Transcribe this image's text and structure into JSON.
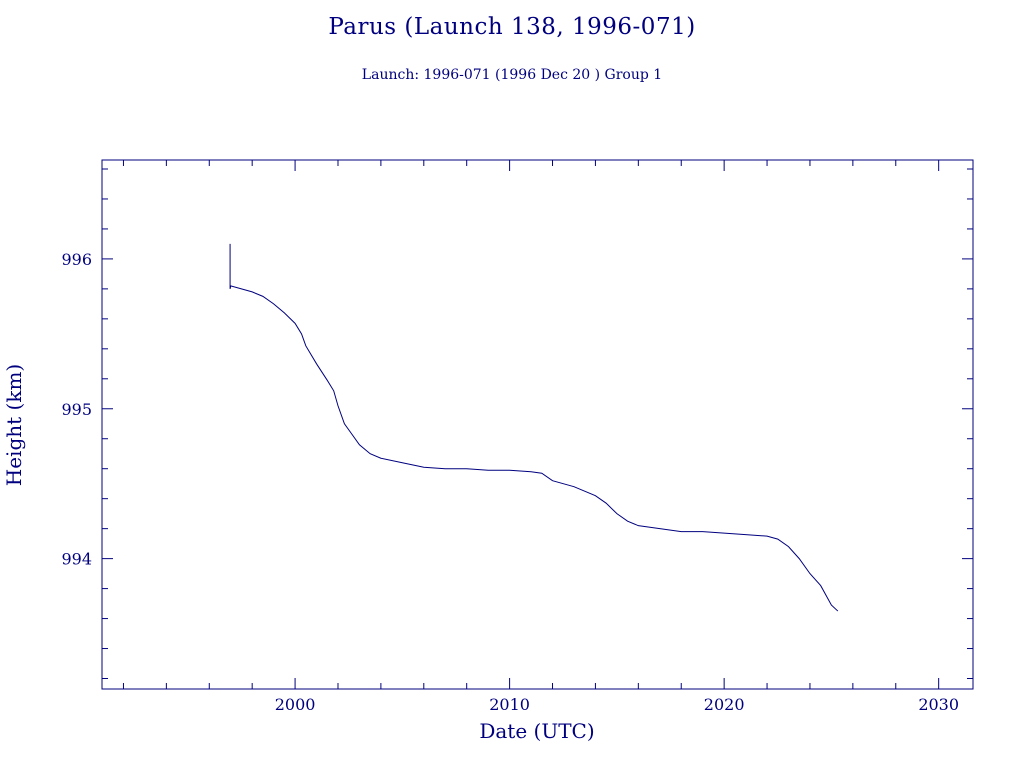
{
  "chart_data": {
    "type": "line",
    "title": "Parus (Launch 138, 1996-071)",
    "subtitle": "Launch: 1996-071  (1996 Dec 20 )  Group 1",
    "xlabel": "Date (UTC)",
    "ylabel": "Height (km)",
    "xlim": [
      1991,
      2031.6
    ],
    "ylim": [
      993.13,
      996.66
    ],
    "x_ticks": [
      2000,
      2010,
      2020,
      2030
    ],
    "y_ticks": [
      994,
      995,
      996
    ],
    "grid": false,
    "color": "#00007f",
    "series": [
      {
        "x": [
          1996.97,
          1996.97,
          1997.0,
          1997.5,
          1998.0,
          1998.5,
          1999.0,
          1999.5,
          2000.0,
          2000.3,
          2000.5,
          2001.0,
          2001.5,
          2001.8,
          2002.0,
          2002.3,
          2002.6,
          2003.0,
          2003.5,
          2004.0,
          2005.0,
          2006.0,
          2007.0,
          2008.0,
          2009.0,
          2010.0,
          2011.0,
          2011.5,
          2012.0,
          2013.0,
          2014.0,
          2014.5,
          2015.0,
          2015.5,
          2016.0,
          2017.0,
          2018.0,
          2019.0,
          2020.0,
          2021.0,
          2022.0,
          2022.5,
          2023.0,
          2023.5,
          2024.0,
          2024.5,
          2025.0,
          2025.3
        ],
        "y": [
          996.1,
          995.8,
          995.82,
          995.8,
          995.78,
          995.75,
          995.7,
          995.64,
          995.57,
          995.5,
          995.42,
          995.3,
          995.19,
          995.12,
          995.02,
          994.9,
          994.84,
          994.76,
          994.7,
          994.67,
          994.64,
          994.61,
          994.6,
          994.6,
          994.59,
          994.59,
          994.58,
          994.57,
          994.52,
          994.48,
          994.42,
          994.37,
          994.3,
          994.25,
          994.22,
          994.2,
          994.18,
          994.18,
          994.17,
          994.16,
          994.15,
          994.13,
          994.08,
          994.0,
          993.9,
          993.82,
          993.69,
          993.65
        ]
      }
    ]
  }
}
